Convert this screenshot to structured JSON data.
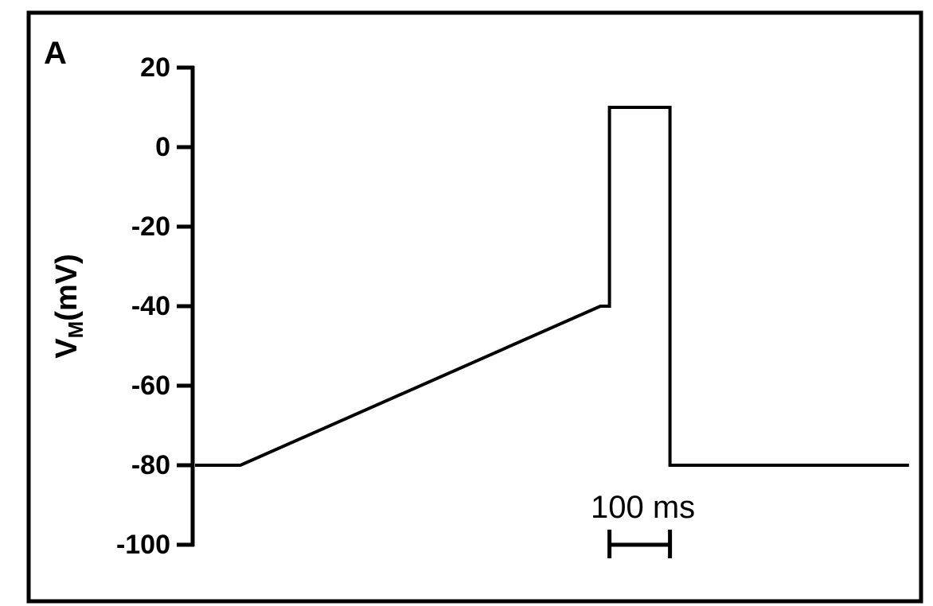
{
  "chart_data": {
    "type": "line",
    "panel_label": "A",
    "ylabel": {
      "main": "V",
      "subscript": "M",
      "unit": "(mV)"
    },
    "xlabel": "",
    "ylim": [
      -100,
      20
    ],
    "yticks": [
      20,
      0,
      -20,
      -40,
      -60,
      -80,
      -100
    ],
    "ytick_labels": [
      "20",
      "0",
      "-20",
      "-40",
      "-60",
      "-80",
      "-100"
    ],
    "x_unit": "ms",
    "grid": false,
    "series": [
      {
        "x": [
          0,
          75,
          670,
          685,
          685,
          785,
          785,
          1180
        ],
        "y": [
          -80,
          -80,
          -40,
          -40,
          10,
          10,
          -80,
          -80
        ]
      }
    ],
    "scale_bar": {
      "value": 100,
      "label": "100 ms",
      "start_x": 685
    },
    "colors": {
      "trace": "#000000",
      "axis": "#000000",
      "frame": "#000000"
    }
  }
}
